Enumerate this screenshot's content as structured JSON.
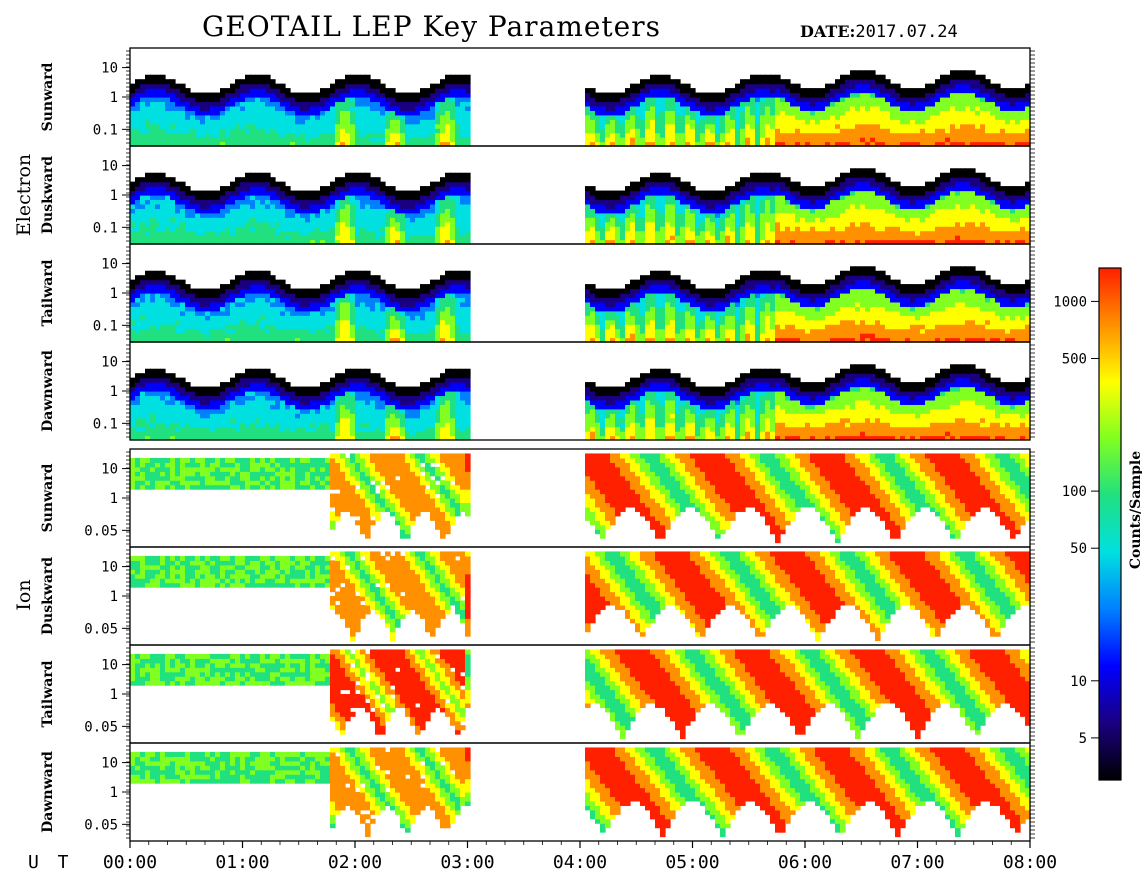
{
  "title": "GEOTAIL LEP Key Parameters",
  "date_label": "DATE:",
  "date_value": "2017.07.24",
  "chart_data": {
    "type": "heatmap",
    "x_axis": {
      "label": "U T",
      "ticks": [
        "00:00",
        "01:00",
        "02:00",
        "03:00",
        "04:00",
        "05:00",
        "06:00",
        "07:00",
        "08:00"
      ],
      "range_hours": [
        0,
        8
      ]
    },
    "data_gap_hours": [
      3.0,
      4.05
    ],
    "colorbar": {
      "label": "Counts/Sample",
      "scale": "log",
      "range": [
        3,
        1500
      ],
      "ticks": [
        "1000",
        "500",
        "100",
        "50",
        "10",
        "5"
      ],
      "colors": [
        "#000000",
        "#1a0080",
        "#0000ff",
        "#0080ff",
        "#00e0e0",
        "#20e080",
        "#80ff20",
        "#ffff00",
        "#ff9000",
        "#ff2000"
      ]
    },
    "groups": [
      {
        "name": "Electron",
        "y_scale": "log",
        "y_ticks": [
          "10",
          "1",
          "0.1"
        ],
        "panels": [
          "Sunward",
          "Duskward",
          "Tailward",
          "Dawnward"
        ]
      },
      {
        "name": "Ion",
        "y_scale": "log",
        "y_ticks": [
          "10",
          "1",
          "0.05"
        ],
        "panels": [
          "Sunward",
          "Duskward",
          "Tailward",
          "Dawnward"
        ]
      }
    ]
  }
}
